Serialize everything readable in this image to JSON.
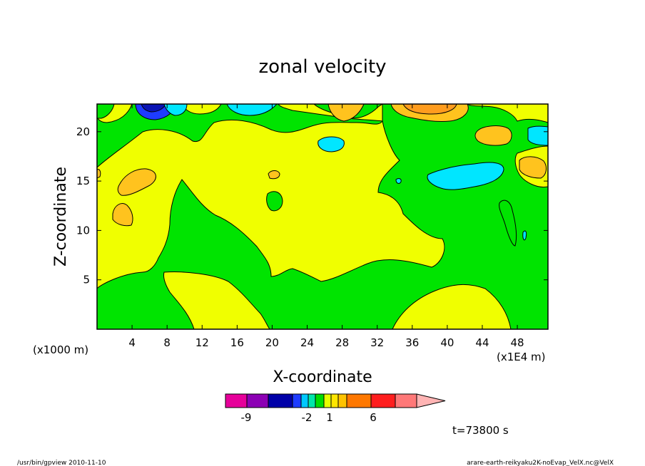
{
  "chart_data": {
    "type": "heatmap",
    "title": "zonal velocity",
    "xlabel": "X-coordinate",
    "ylabel": "Z-coordinate",
    "x_unit_left": "(x1000 m)",
    "x_unit_right": "(x1E4 m)",
    "xlim": [
      0,
      51.5
    ],
    "ylim": [
      0,
      22.8
    ],
    "x_ticks": [
      4,
      8,
      12,
      16,
      20,
      24,
      28,
      32,
      36,
      40,
      44,
      48
    ],
    "y_ticks": [
      5,
      10,
      15,
      20
    ],
    "time_label": "t=73800 s",
    "colorbar": {
      "tick_labels": [
        "-9",
        "-2",
        "1",
        "6"
      ],
      "colors": [
        "#e6009a",
        "#8c00b4",
        "#0000a8",
        "#1e3cff",
        "#00c8ff",
        "#00e6aa",
        "#00dc00",
        "#e6ff00",
        "#ffe600",
        "#ffc300",
        "#ff7800",
        "#ff1e1e",
        "#ff7878",
        "#ffb4b4"
      ]
    },
    "palette": {
      "yellow": "#f0ff00",
      "green": "#00e400",
      "orange": "#ffc31e",
      "dark_orange": "#ff9c1e",
      "cyan": "#00e6ff",
      "blue": "#1e3cff",
      "dark_blue": "#0a14b4"
    }
  },
  "footer": {
    "left": "/usr/bin/gpview   2010-11-10",
    "right": "arare-earth-reikyaku2K-noEvap_VelX.nc@VelX"
  }
}
